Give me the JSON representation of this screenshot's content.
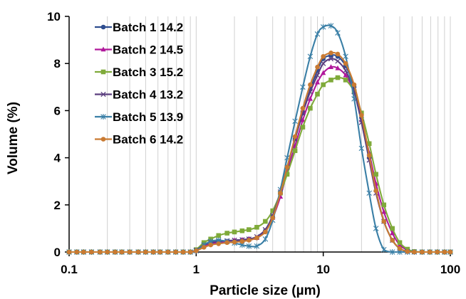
{
  "chart_data": {
    "type": "line",
    "title": "",
    "xlabel": "Particle size (µm)",
    "ylabel": "Volume (%)",
    "xscale": "log",
    "xlim": [
      0.1,
      100
    ],
    "ylim": [
      0,
      10
    ],
    "x_ticks": [
      0.1,
      1,
      10,
      100
    ],
    "x_tick_labels": [
      "0.1",
      "1",
      "10",
      "100"
    ],
    "y_ticks": [
      0,
      2,
      4,
      6,
      8,
      10
    ],
    "y_tick_labels": [
      "0",
      "2",
      "4",
      "6",
      "8",
      "10"
    ],
    "grid": "vertical minor and major gridlines at log decades",
    "legend": "top-left",
    "x": [
      0.1,
      0.115,
      0.13,
      0.15,
      0.175,
      0.2,
      0.23,
      0.26,
      0.3,
      0.35,
      0.4,
      0.46,
      0.52,
      0.6,
      0.69,
      0.79,
      0.9,
      1.0,
      1.15,
      1.3,
      1.5,
      1.75,
      2.0,
      2.3,
      2.6,
      3.0,
      3.5,
      4.0,
      4.6,
      5.2,
      6.0,
      6.9,
      7.9,
      9.0,
      10.0,
      11.5,
      13.0,
      15.0,
      17.5,
      20.0,
      23.0,
      26.0,
      30.0,
      35.0,
      40.0,
      46.0,
      52.0,
      60.0,
      69.0,
      79.0,
      90.0,
      100.0
    ],
    "series": [
      {
        "name": "Batch 1 14.2",
        "color": "#2e4d8f",
        "marker": "circle",
        "values": [
          0,
          0,
          0,
          0,
          0,
          0,
          0,
          0,
          0,
          0,
          0,
          0,
          0,
          0,
          0,
          0,
          0,
          0.05,
          0.25,
          0.35,
          0.4,
          0.42,
          0.45,
          0.5,
          0.55,
          0.6,
          0.9,
          1.5,
          2.5,
          3.6,
          4.8,
          5.9,
          6.9,
          7.7,
          8.2,
          8.35,
          8.3,
          7.9,
          7.0,
          5.7,
          4.0,
          2.6,
          1.3,
          0.5,
          0.15,
          0.02,
          0,
          0,
          0,
          0,
          0,
          0
        ]
      },
      {
        "name": "Batch 2 14.5",
        "color": "#b0179b",
        "marker": "triangle",
        "values": [
          0,
          0,
          0,
          0,
          0,
          0,
          0,
          0,
          0,
          0,
          0,
          0,
          0,
          0,
          0,
          0,
          0,
          0.05,
          0.25,
          0.35,
          0.42,
          0.45,
          0.5,
          0.52,
          0.55,
          0.6,
          0.9,
          1.45,
          2.35,
          3.4,
          4.5,
          5.6,
          6.5,
          7.2,
          7.6,
          7.85,
          7.8,
          7.5,
          6.8,
          5.6,
          4.2,
          2.9,
          1.7,
          0.8,
          0.3,
          0.08,
          0.01,
          0,
          0,
          0,
          0,
          0
        ]
      },
      {
        "name": "Batch 3 15.2",
        "color": "#7faa3a",
        "marker": "square",
        "values": [
          0,
          0,
          0,
          0,
          0,
          0,
          0,
          0,
          0,
          0,
          0,
          0,
          0,
          0,
          0,
          0,
          0,
          0.1,
          0.4,
          0.55,
          0.7,
          0.8,
          0.85,
          0.9,
          0.95,
          1.05,
          1.3,
          1.75,
          2.5,
          3.3,
          4.3,
          5.3,
          6.1,
          6.7,
          7.1,
          7.3,
          7.4,
          7.3,
          6.8,
          5.9,
          4.6,
          3.3,
          2.0,
          1.0,
          0.4,
          0.12,
          0.02,
          0,
          0,
          0,
          0,
          0
        ]
      },
      {
        "name": "Batch 4 13.2",
        "color": "#5a3d7e",
        "marker": "x",
        "values": [
          0,
          0,
          0,
          0,
          0,
          0,
          0,
          0,
          0,
          0,
          0,
          0,
          0,
          0,
          0,
          0,
          0,
          0.08,
          0.3,
          0.4,
          0.45,
          0.48,
          0.5,
          0.52,
          0.55,
          0.65,
          0.95,
          1.55,
          2.55,
          3.6,
          4.8,
          5.9,
          6.8,
          7.5,
          8.0,
          8.2,
          8.1,
          7.7,
          6.8,
          5.5,
          3.9,
          2.5,
          1.3,
          0.5,
          0.15,
          0.02,
          0,
          0,
          0,
          0,
          0,
          0
        ]
      },
      {
        "name": "Batch 5 13.9",
        "color": "#3a7fa6",
        "marker": "star",
        "values": [
          0,
          0,
          0,
          0,
          0,
          0,
          0,
          0,
          0,
          0,
          0,
          0,
          0,
          0,
          0,
          0,
          0,
          0.05,
          0.3,
          0.45,
          0.5,
          0.45,
          0.38,
          0.3,
          0.25,
          0.25,
          0.55,
          1.35,
          2.65,
          4.0,
          5.55,
          7.0,
          8.3,
          9.25,
          9.55,
          9.6,
          9.3,
          8.3,
          6.5,
          4.4,
          2.5,
          1.0,
          0.1,
          0,
          0,
          0,
          0,
          0,
          0,
          0,
          0,
          0
        ]
      },
      {
        "name": "Batch 6 14.2",
        "color": "#c97a32",
        "marker": "circle",
        "values": [
          0,
          0,
          0,
          0,
          0,
          0,
          0,
          0,
          0,
          0,
          0,
          0,
          0,
          0,
          0,
          0,
          0,
          0.05,
          0.2,
          0.3,
          0.35,
          0.4,
          0.42,
          0.45,
          0.5,
          0.6,
          0.85,
          1.45,
          2.5,
          3.6,
          4.9,
          6.1,
          7.1,
          7.85,
          8.3,
          8.45,
          8.4,
          8.0,
          7.1,
          5.8,
          4.1,
          2.6,
          1.3,
          0.5,
          0.15,
          0.02,
          0,
          0,
          0,
          0,
          0,
          0
        ]
      }
    ]
  }
}
